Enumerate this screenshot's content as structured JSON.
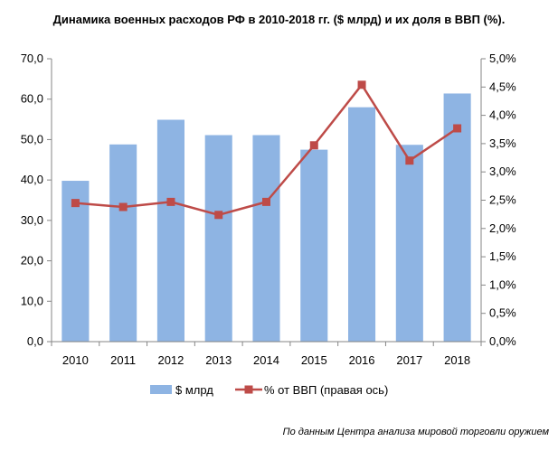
{
  "chart_data": {
    "type": "bar+line",
    "title": "Динамика военных расходов РФ в 2010-2018  гг. ($ млрд) и их доля в ВВП (%).",
    "categories": [
      "2010",
      "2011",
      "2012",
      "2013",
      "2014",
      "2015",
      "2016",
      "2017",
      "2018"
    ],
    "series": [
      {
        "name": "$ млрд",
        "type": "bar",
        "axis": "left",
        "color": "#8eb4e3",
        "values": [
          39.8,
          48.8,
          54.9,
          51.1,
          51.1,
          47.5,
          58.0,
          48.7,
          61.4
        ]
      },
      {
        "name": "% от ВВП (правая ось)",
        "type": "line",
        "axis": "right",
        "color": "#be4b48",
        "values": [
          2.45,
          2.38,
          2.47,
          2.24,
          2.47,
          3.47,
          4.54,
          3.2,
          3.77
        ]
      }
    ],
    "y_left": {
      "ylim": [
        0,
        70
      ],
      "ticks": [
        0,
        10,
        20,
        30,
        40,
        50,
        60,
        70
      ],
      "tick_labels": [
        "0,0",
        "10,0",
        "20,0",
        "30,0",
        "40,0",
        "50,0",
        "60,0",
        "70,0"
      ]
    },
    "y_right": {
      "ylim": [
        0,
        5
      ],
      "ticks": [
        0,
        0.5,
        1,
        1.5,
        2,
        2.5,
        3,
        3.5,
        4,
        4.5,
        5
      ],
      "tick_labels": [
        "0,0%",
        "0,5%",
        "1,0%",
        "1,5%",
        "2,0%",
        "2,5%",
        "3,0%",
        "3,5%",
        "4,0%",
        "4,5%",
        "5,0%"
      ]
    },
    "grid": false,
    "legend_position": "bottom",
    "source": "По данным Центра анализа мировой торговли оружием"
  }
}
